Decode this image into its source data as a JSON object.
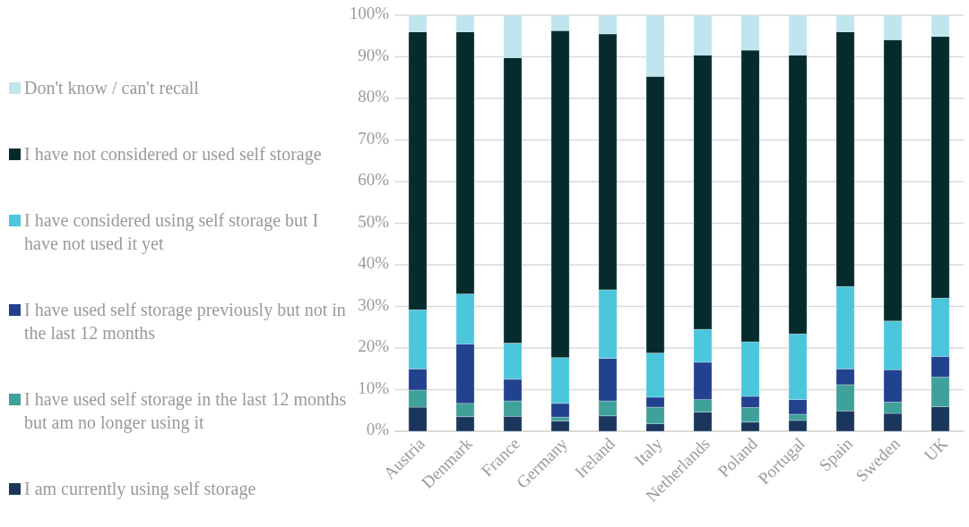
{
  "chart_data": {
    "type": "bar",
    "stacked": true,
    "categories": [
      "Austria",
      "Denmark",
      "France",
      "Germany",
      "Ireland",
      "Italy",
      "Netherlands",
      "Poland",
      "Portugal",
      "Spain",
      "Sweden",
      "UK"
    ],
    "series": [
      {
        "name": "I am currently using self storage",
        "color": "#1b365d",
        "values": [
          5.8,
          3.5,
          3.6,
          2.5,
          3.7,
          1.8,
          4.6,
          2.2,
          2.6,
          4.9,
          4.3,
          5.9
        ]
      },
      {
        "name": "I have used self storage in the last 12 months but am no longer using it",
        "color": "#40a09a",
        "values": [
          4.1,
          3.2,
          3.7,
          0.9,
          3.6,
          4.0,
          3.0,
          3.5,
          1.5,
          6.3,
          2.7,
          7.1
        ]
      },
      {
        "name": "I have used self storage previously but not in the last 12 months",
        "color": "#22418f",
        "values": [
          5.1,
          14.3,
          5.2,
          3.3,
          10.2,
          2.4,
          9.0,
          2.7,
          3.5,
          3.8,
          7.8,
          5.0
        ]
      },
      {
        "name": "I have considered using self storage but I have not used it yet",
        "color": "#4bc6dc",
        "values": [
          14.2,
          12.0,
          8.7,
          11.0,
          16.5,
          10.6,
          7.9,
          13.1,
          15.8,
          19.8,
          11.7,
          14.0
        ]
      },
      {
        "name": "I have not considered or used self storage",
        "color": "#062b2e",
        "values": [
          66.8,
          63.0,
          68.6,
          78.6,
          61.5,
          66.5,
          65.9,
          70.1,
          67.0,
          61.2,
          67.6,
          62.9
        ]
      },
      {
        "name": "Don't know / can't recall",
        "color": "#bfe5ee",
        "values": [
          4.0,
          4.0,
          10.2,
          3.7,
          4.5,
          14.7,
          9.6,
          8.4,
          9.6,
          4.0,
          5.9,
          5.1
        ]
      }
    ],
    "ylim": [
      0,
      100
    ],
    "yticks": [
      {
        "value": 0,
        "label": "0%"
      },
      {
        "value": 10,
        "label": "10%"
      },
      {
        "value": 20,
        "label": "20%"
      },
      {
        "value": 30,
        "label": "30%"
      },
      {
        "value": 40,
        "label": "40%"
      },
      {
        "value": 50,
        "label": "50%"
      },
      {
        "value": 60,
        "label": "60%"
      },
      {
        "value": 70,
        "label": "70%"
      },
      {
        "value": 80,
        "label": "80%"
      },
      {
        "value": 90,
        "label": "90%"
      },
      {
        "value": 100,
        "label": "100%"
      }
    ],
    "grid": "y",
    "legend": "left"
  }
}
